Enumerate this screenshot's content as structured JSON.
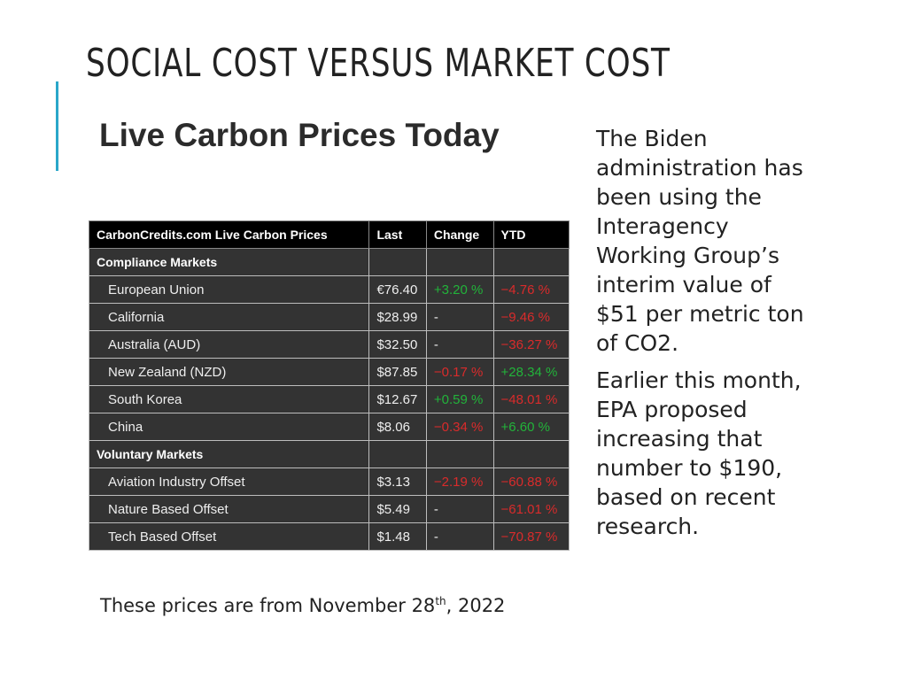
{
  "slide": {
    "title": "SOCIAL COST VERSUS MARKET COST",
    "accent_color": "#2aa7c9",
    "subheading": "Live Carbon Prices Today",
    "table": {
      "headers": [
        "CarbonCredits.com Live Carbon Prices",
        "Last",
        "Change",
        "YTD"
      ],
      "sections": [
        {
          "name": "Compliance Markets",
          "rows": [
            {
              "market": "European Union",
              "last": "€76.40",
              "change": "+3.20 %",
              "ytd": "−4.76 %"
            },
            {
              "market": "California",
              "last": "$28.99",
              "change": "-",
              "ytd": "−9.46 %"
            },
            {
              "market": "Australia (AUD)",
              "last": "$32.50",
              "change": "-",
              "ytd": "−36.27 %"
            },
            {
              "market": "New Zealand (NZD)",
              "last": "$87.85",
              "change": "−0.17 %",
              "ytd": "+28.34 %"
            },
            {
              "market": "South Korea",
              "last": "$12.67",
              "change": "+0.59 %",
              "ytd": "−48.01 %"
            },
            {
              "market": "China",
              "last": "$8.06",
              "change": "−0.34 %",
              "ytd": "+6.60 %"
            }
          ]
        },
        {
          "name": "Voluntary Markets",
          "rows": [
            {
              "market": "Aviation Industry Offset",
              "last": "$3.13",
              "change": "−2.19 %",
              "ytd": "−60.88 %"
            },
            {
              "market": "Nature Based Offset",
              "last": "$5.49",
              "change": "-",
              "ytd": "−61.01 %"
            },
            {
              "market": "Tech Based Offset",
              "last": "$1.48",
              "change": "-",
              "ytd": "−70.87 %"
            }
          ]
        }
      ],
      "colors": {
        "positive": "#22b33a",
        "negative": "#d92b2b",
        "header_bg": "#000000",
        "row_bg": "#333333"
      }
    },
    "side_paragraphs": [
      "The Biden administration has been using the Interagency Working Group’s interim value of $51 per metric ton of CO2.",
      "Earlier this month, EPA proposed increasing that number to $190, based on recent research."
    ],
    "caption": {
      "before": "These prices are from November 28",
      "sup": "th",
      "after": ", 2022"
    }
  }
}
